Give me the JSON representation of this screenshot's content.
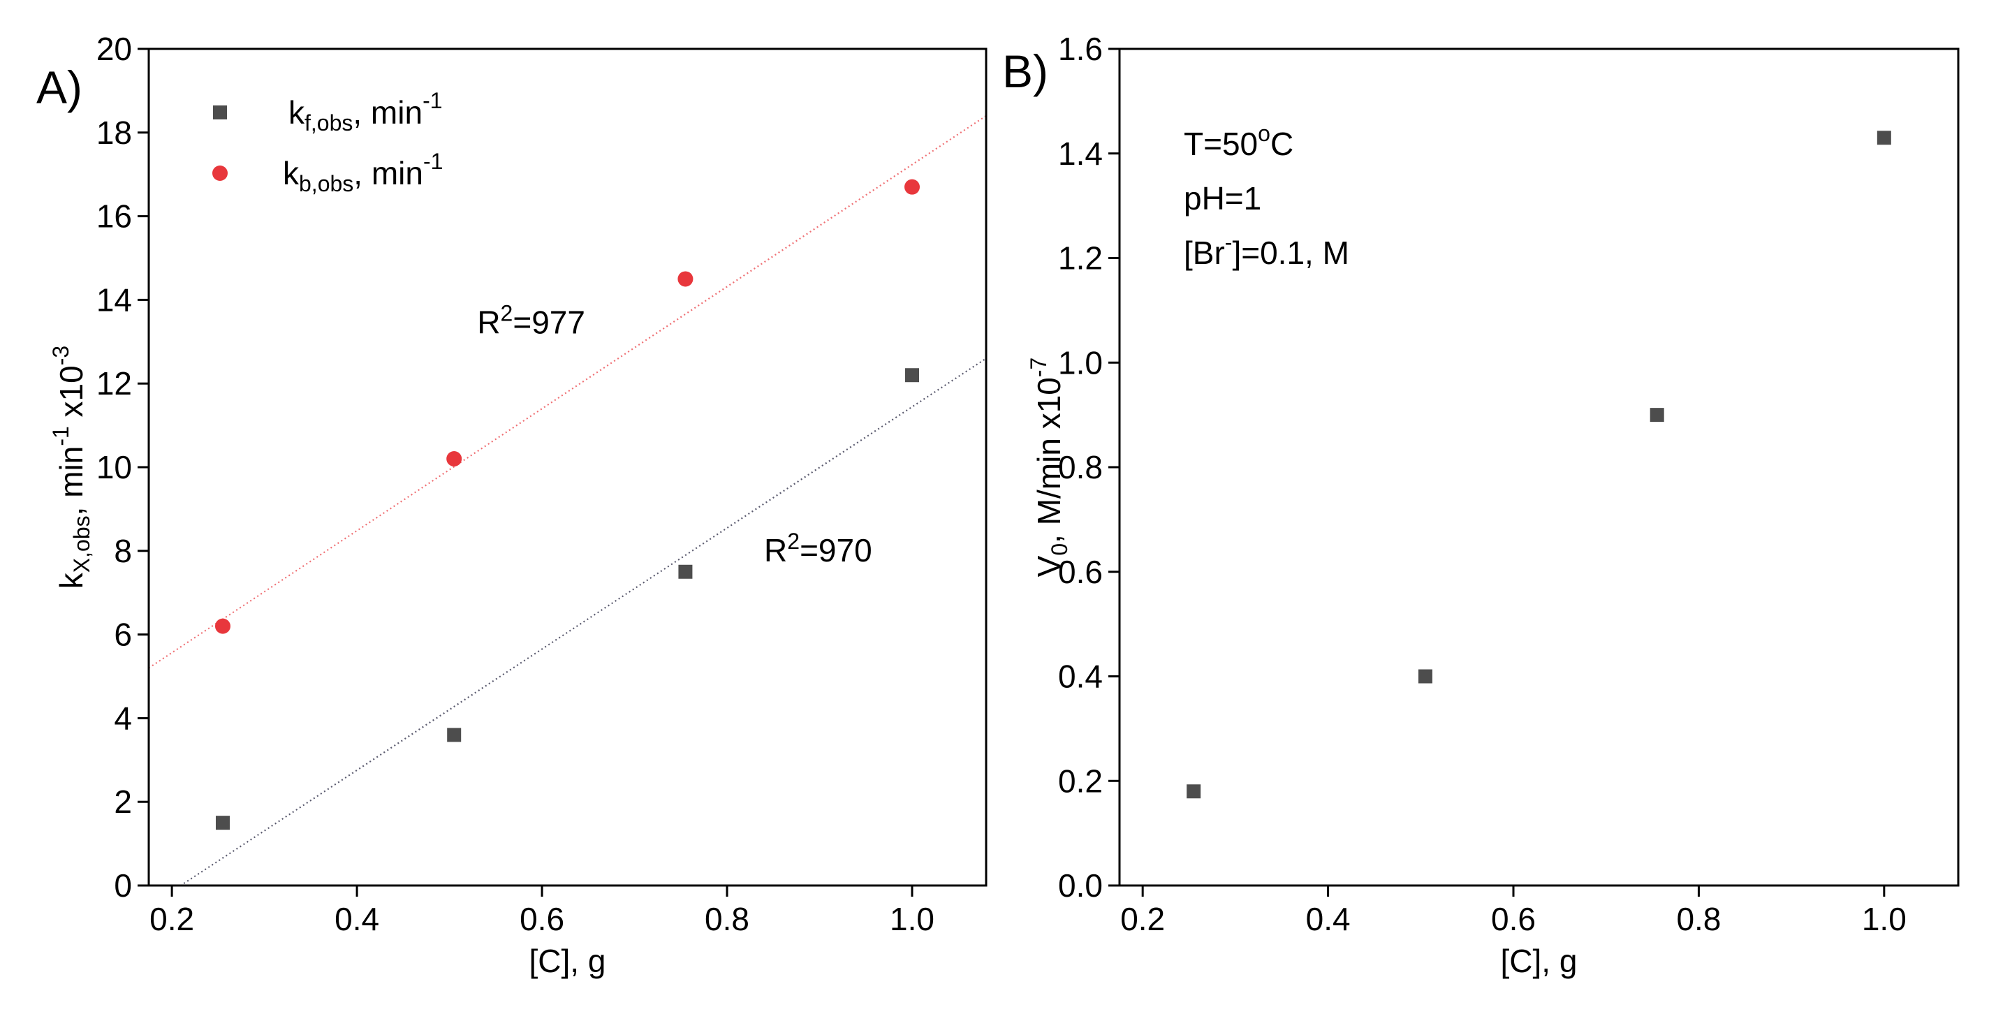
{
  "chart_data": [
    {
      "type": "scatter",
      "panel_label": "A)",
      "xlabel": "[C], g",
      "ylabel": {
        "main": "k",
        "sub": "X,obs",
        "rest": ", min",
        "sup": "-1",
        "suffix": " x10",
        "sup2": "-3"
      },
      "xlim": [
        0.175,
        1.08
      ],
      "ylim": [
        0,
        20
      ],
      "xticks": [
        0.2,
        0.4,
        0.6,
        0.8,
        1.0
      ],
      "xtick_labels": [
        "0.2",
        "0.4",
        "0.6",
        "0.8",
        "1.0"
      ],
      "yticks": [
        0,
        2,
        4,
        6,
        8,
        10,
        12,
        14,
        16,
        18,
        20
      ],
      "ytick_labels": [
        "0",
        "2",
        "4",
        "6",
        "8",
        "10",
        "12",
        "14",
        "16",
        "18",
        "20"
      ],
      "legend_position": "top-left",
      "series": [
        {
          "name": "k_f,obs, min^-1",
          "label": {
            "main": "k",
            "sub": "f,obs",
            "rest": ", min",
            "sup": "-1"
          },
          "marker": "square",
          "color": "#4d4d4d",
          "x": [
            0.255,
            0.505,
            0.755,
            1.0
          ],
          "y": [
            1.5,
            3.6,
            7.5,
            12.2
          ],
          "fit": {
            "x": [
              0.175,
              1.08
            ],
            "y": [
              -0.5,
              12.6
            ],
            "color": "#5a5a6e"
          },
          "annotation": {
            "text": "R",
            "sup": "2",
            "rest": "=970",
            "x": 0.84,
            "y": 7.75
          }
        },
        {
          "name": "k_b,obs, min^-1",
          "label": {
            "main": "k",
            "sub": "b,obs",
            "rest": ", min",
            "sup": "-1"
          },
          "marker": "circle",
          "color": "#e8373c",
          "x": [
            0.255,
            0.505,
            0.755,
            1.0
          ],
          "y": [
            6.2,
            10.2,
            14.5,
            16.7
          ],
          "fit": {
            "x": [
              0.175,
              1.08
            ],
            "y": [
              5.2,
              18.4
            ],
            "color": "#ef6f73"
          },
          "annotation": {
            "text": "R",
            "sup": "2",
            "rest": "=977",
            "x": 0.53,
            "y": 13.2
          }
        }
      ]
    },
    {
      "type": "scatter",
      "panel_label": "B)",
      "xlabel": "[C], g",
      "ylabel": {
        "main": "V",
        "sub": "0",
        "rest": ", M/min x10",
        "sup": "-7"
      },
      "xlim": [
        0.175,
        1.08
      ],
      "ylim": [
        0,
        1.6
      ],
      "xticks": [
        0.2,
        0.4,
        0.6,
        0.8,
        1.0
      ],
      "xtick_labels": [
        "0.2",
        "0.4",
        "0.6",
        "0.8",
        "1.0"
      ],
      "yticks": [
        0,
        0.2,
        0.4,
        0.6,
        0.8,
        1.0,
        1.2,
        1.4,
        1.6
      ],
      "ytick_labels": [
        "0.0",
        "0.2",
        "0.4",
        "0.6",
        "0.8",
        "1.0",
        "1.2",
        "1.4",
        "1.6"
      ],
      "series": [
        {
          "name": "V0",
          "marker": "square",
          "color": "#4d4d4d",
          "x": [
            0.255,
            0.505,
            0.755,
            1.0
          ],
          "y": [
            0.18,
            0.4,
            0.9,
            1.43
          ]
        }
      ],
      "conditions": [
        {
          "text": "T=50",
          "sup": "o",
          "rest": "C"
        },
        {
          "text": "pH=1",
          "sup": "",
          "rest": ""
        },
        {
          "text": "[Br",
          "sup": "-",
          "rest": "]=0.1, M"
        }
      ]
    }
  ]
}
